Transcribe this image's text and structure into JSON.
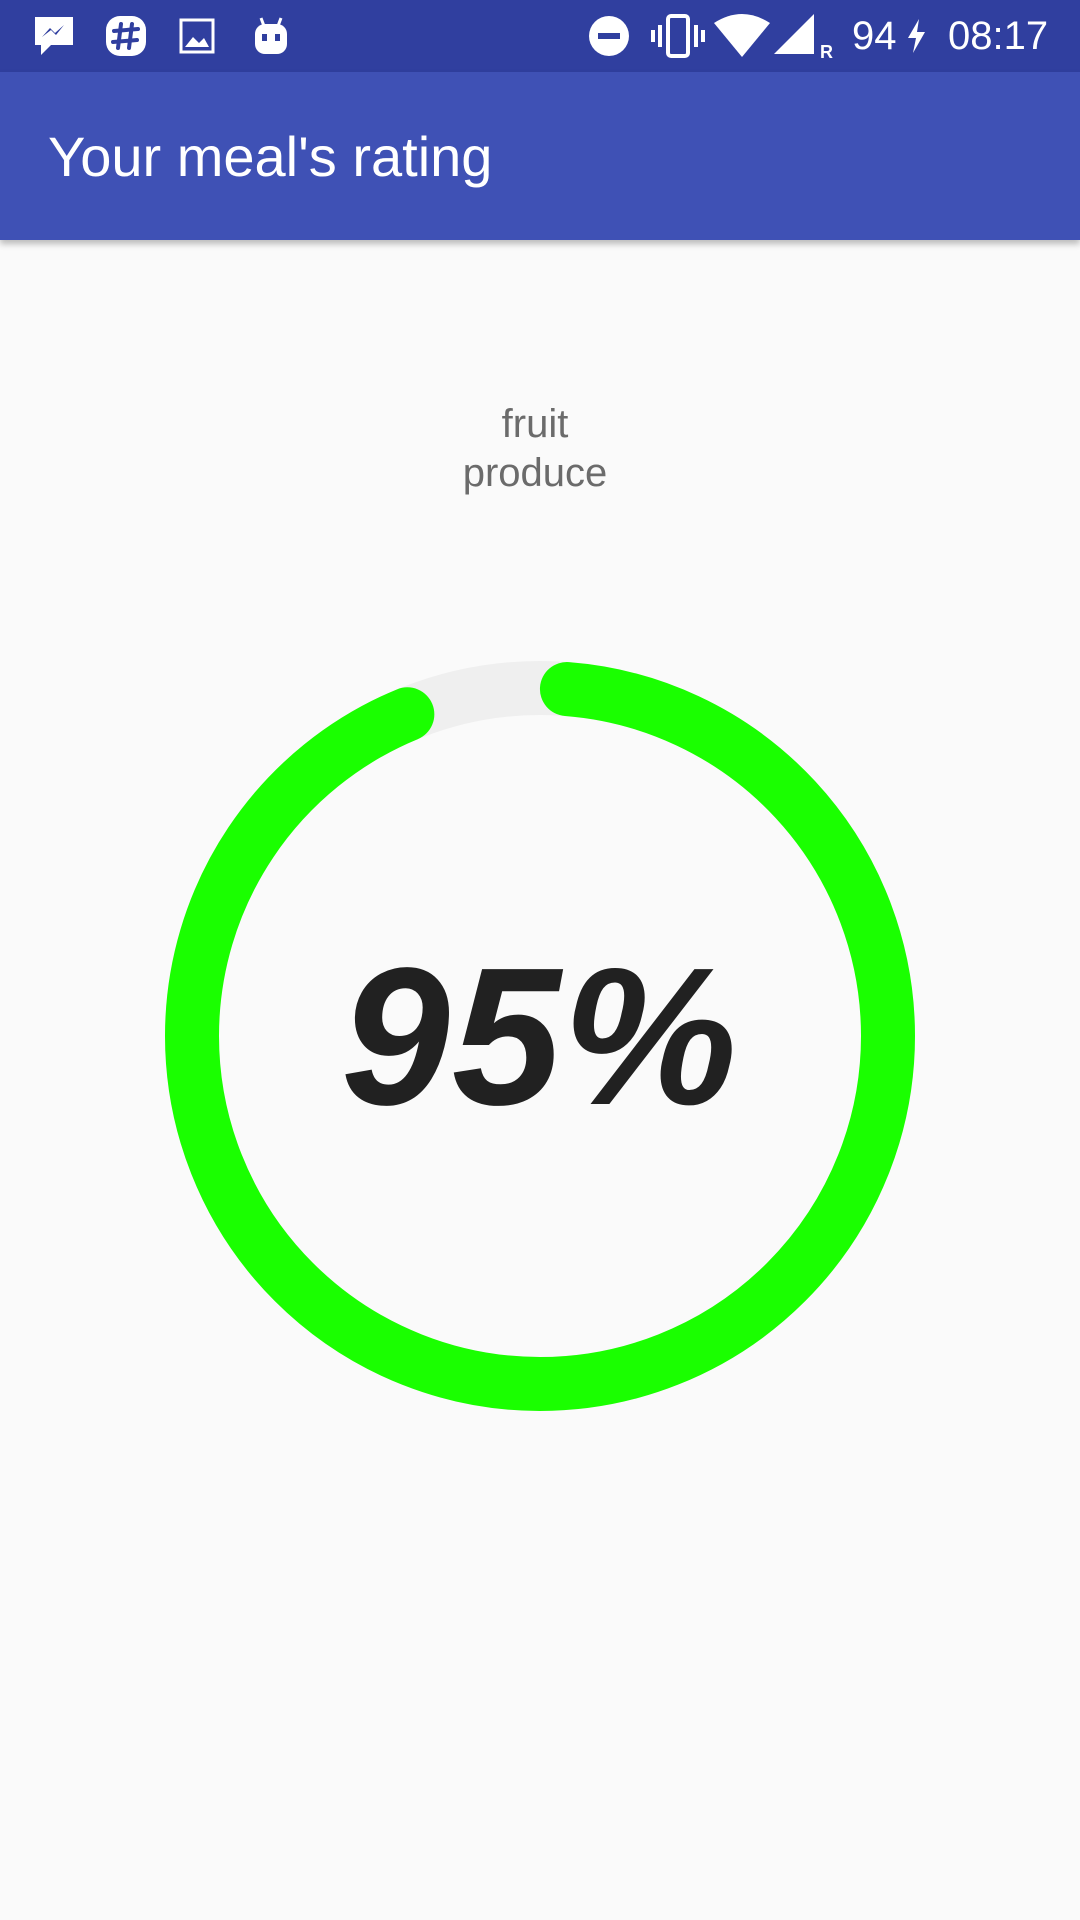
{
  "status_bar": {
    "battery": "94",
    "time": "08:17",
    "icons": [
      "messenger-icon",
      "slack-icon",
      "gallery-icon",
      "android-icon",
      "do-not-disturb-icon",
      "vibrate-icon",
      "wifi-icon",
      "signal-roaming-icon",
      "charging-icon"
    ]
  },
  "app_bar": {
    "title": "Your meal's rating"
  },
  "tags": [
    "fruit",
    "produce"
  ],
  "rating": {
    "value_label": "95%",
    "value": 0.95,
    "progress_color": "#1aff00",
    "track_color": "#efefef"
  }
}
